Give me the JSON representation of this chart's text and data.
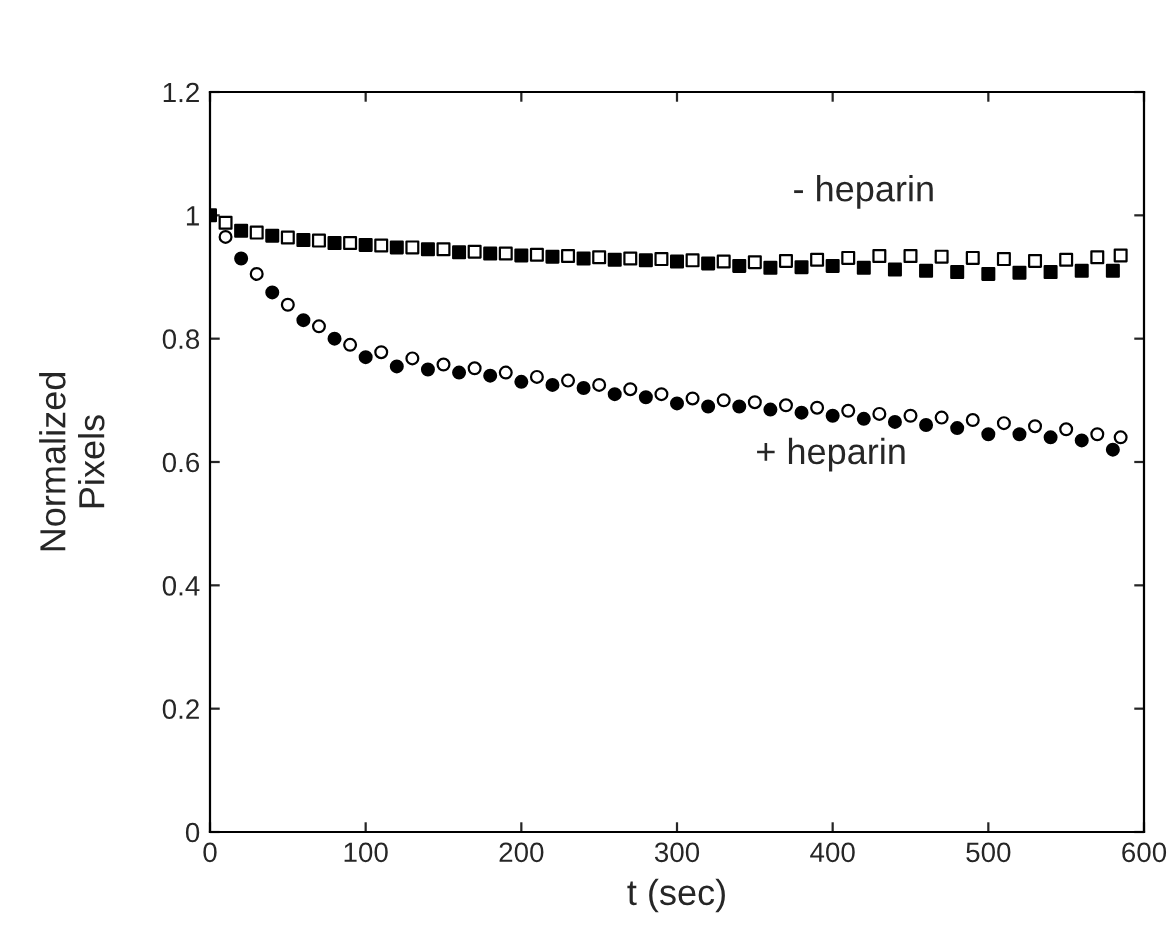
{
  "chart_data": {
    "type": "scatter",
    "xlabel": "t (sec)",
    "ylabel": "Normalized\nPixels",
    "xlim": [
      0,
      600
    ],
    "xticks": [
      0,
      100,
      200,
      300,
      400,
      500,
      600
    ],
    "ylim": [
      0,
      1.2
    ],
    "yticks": [
      0,
      0.2,
      0.4,
      0.6,
      0.8,
      1,
      1.2
    ],
    "grid": false,
    "series": [
      {
        "color": "#000000",
        "marker": "square",
        "x": [
          0,
          20,
          40,
          60,
          80,
          100,
          120,
          140,
          160,
          180,
          200,
          220,
          240,
          260,
          280,
          300,
          320,
          340,
          360,
          380,
          400,
          420,
          440,
          460,
          480,
          500,
          520,
          540,
          560,
          580
        ],
        "values": [
          1.0,
          0.975,
          0.967,
          0.96,
          0.955,
          0.952,
          0.948,
          0.945,
          0.94,
          0.938,
          0.935,
          0.933,
          0.93,
          0.928,
          0.927,
          0.925,
          0.922,
          0.918,
          0.915,
          0.916,
          0.918,
          0.915,
          0.912,
          0.91,
          0.908,
          0.905,
          0.907,
          0.908,
          0.91,
          0.91
        ]
      },
      {
        "color": "#ffffff",
        "marker": "square",
        "x": [
          10,
          30,
          50,
          70,
          90,
          110,
          130,
          150,
          170,
          190,
          210,
          230,
          250,
          270,
          290,
          310,
          330,
          350,
          370,
          390,
          410,
          430,
          450,
          470,
          490,
          510,
          530,
          550,
          570,
          585
        ],
        "values": [
          0.988,
          0.972,
          0.964,
          0.959,
          0.955,
          0.951,
          0.948,
          0.945,
          0.941,
          0.938,
          0.936,
          0.934,
          0.932,
          0.93,
          0.929,
          0.927,
          0.925,
          0.924,
          0.926,
          0.928,
          0.931,
          0.934,
          0.934,
          0.933,
          0.931,
          0.929,
          0.926,
          0.928,
          0.932,
          0.935
        ]
      },
      {
        "color": "#000000",
        "marker": "circle",
        "x": [
          20,
          40,
          60,
          80,
          100,
          120,
          140,
          160,
          180,
          200,
          220,
          240,
          260,
          280,
          300,
          320,
          340,
          360,
          380,
          400,
          420,
          440,
          460,
          480,
          500,
          520,
          540,
          560,
          580
        ],
        "values": [
          0.93,
          0.875,
          0.83,
          0.8,
          0.77,
          0.755,
          0.75,
          0.745,
          0.74,
          0.73,
          0.725,
          0.72,
          0.71,
          0.705,
          0.695,
          0.69,
          0.69,
          0.685,
          0.68,
          0.675,
          0.67,
          0.665,
          0.66,
          0.655,
          0.645,
          0.645,
          0.64,
          0.635,
          0.62
        ]
      },
      {
        "color": "#ffffff",
        "marker": "circle",
        "x": [
          10,
          30,
          50,
          70,
          90,
          110,
          130,
          150,
          170,
          190,
          210,
          230,
          250,
          270,
          290,
          310,
          330,
          350,
          370,
          390,
          410,
          430,
          450,
          470,
          490,
          510,
          530,
          550,
          570,
          585
        ],
        "values": [
          0.965,
          0.905,
          0.855,
          0.82,
          0.79,
          0.778,
          0.768,
          0.758,
          0.752,
          0.745,
          0.738,
          0.732,
          0.725,
          0.718,
          0.71,
          0.703,
          0.7,
          0.697,
          0.692,
          0.688,
          0.683,
          0.678,
          0.675,
          0.672,
          0.668,
          0.663,
          0.658,
          0.653,
          0.645,
          0.64
        ]
      }
    ],
    "annotations": [
      "- heparin",
      "+ heparin"
    ]
  }
}
